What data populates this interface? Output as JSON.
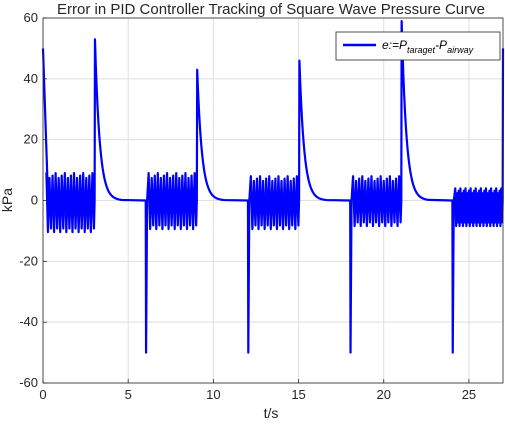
{
  "chart_data": {
    "type": "line",
    "title": "Error in PID Controller Tracking of Square Wave Pressure Curve",
    "xlabel": "t/s",
    "ylabel": "kPa",
    "xlim": [
      0,
      27
    ],
    "ylim": [
      -60,
      60
    ],
    "xticks": [
      0,
      5,
      10,
      15,
      20,
      25
    ],
    "yticks": [
      -60,
      -40,
      -20,
      0,
      20,
      40,
      60
    ],
    "grid": true,
    "legend_position": "top-right",
    "legend": {
      "prefix": "e:=P",
      "sub1": "taraget",
      "mid": "-P",
      "sub2": "airway"
    },
    "series": [
      {
        "color": "#0000ff",
        "key_points": [
          {
            "x": 0.0,
            "y": 50
          },
          {
            "x": 0.3,
            "y": 0
          },
          {
            "x": 3.05,
            "y": 53
          },
          {
            "x": 4.5,
            "y": 0
          },
          {
            "x": 6.05,
            "y": -50
          },
          {
            "x": 9.05,
            "y": 43
          },
          {
            "x": 12.05,
            "y": -50
          },
          {
            "x": 15.05,
            "y": 46
          },
          {
            "x": 18.05,
            "y": -50
          },
          {
            "x": 21.05,
            "y": 59
          },
          {
            "x": 24.05,
            "y": -50
          },
          {
            "x": 27.0,
            "y": 50
          }
        ],
        "oscillation_bands": [
          {
            "start": 0.2,
            "end": 3.0,
            "min": -11,
            "max": 9
          },
          {
            "start": 6.2,
            "end": 9.0,
            "min": -10,
            "max": 9
          },
          {
            "start": 12.2,
            "end": 15.0,
            "min": -10,
            "max": 8
          },
          {
            "start": 18.2,
            "end": 21.0,
            "min": -9,
            "max": 8
          },
          {
            "start": 24.2,
            "end": 27.0,
            "min": -9,
            "max": 4
          }
        ]
      }
    ]
  }
}
